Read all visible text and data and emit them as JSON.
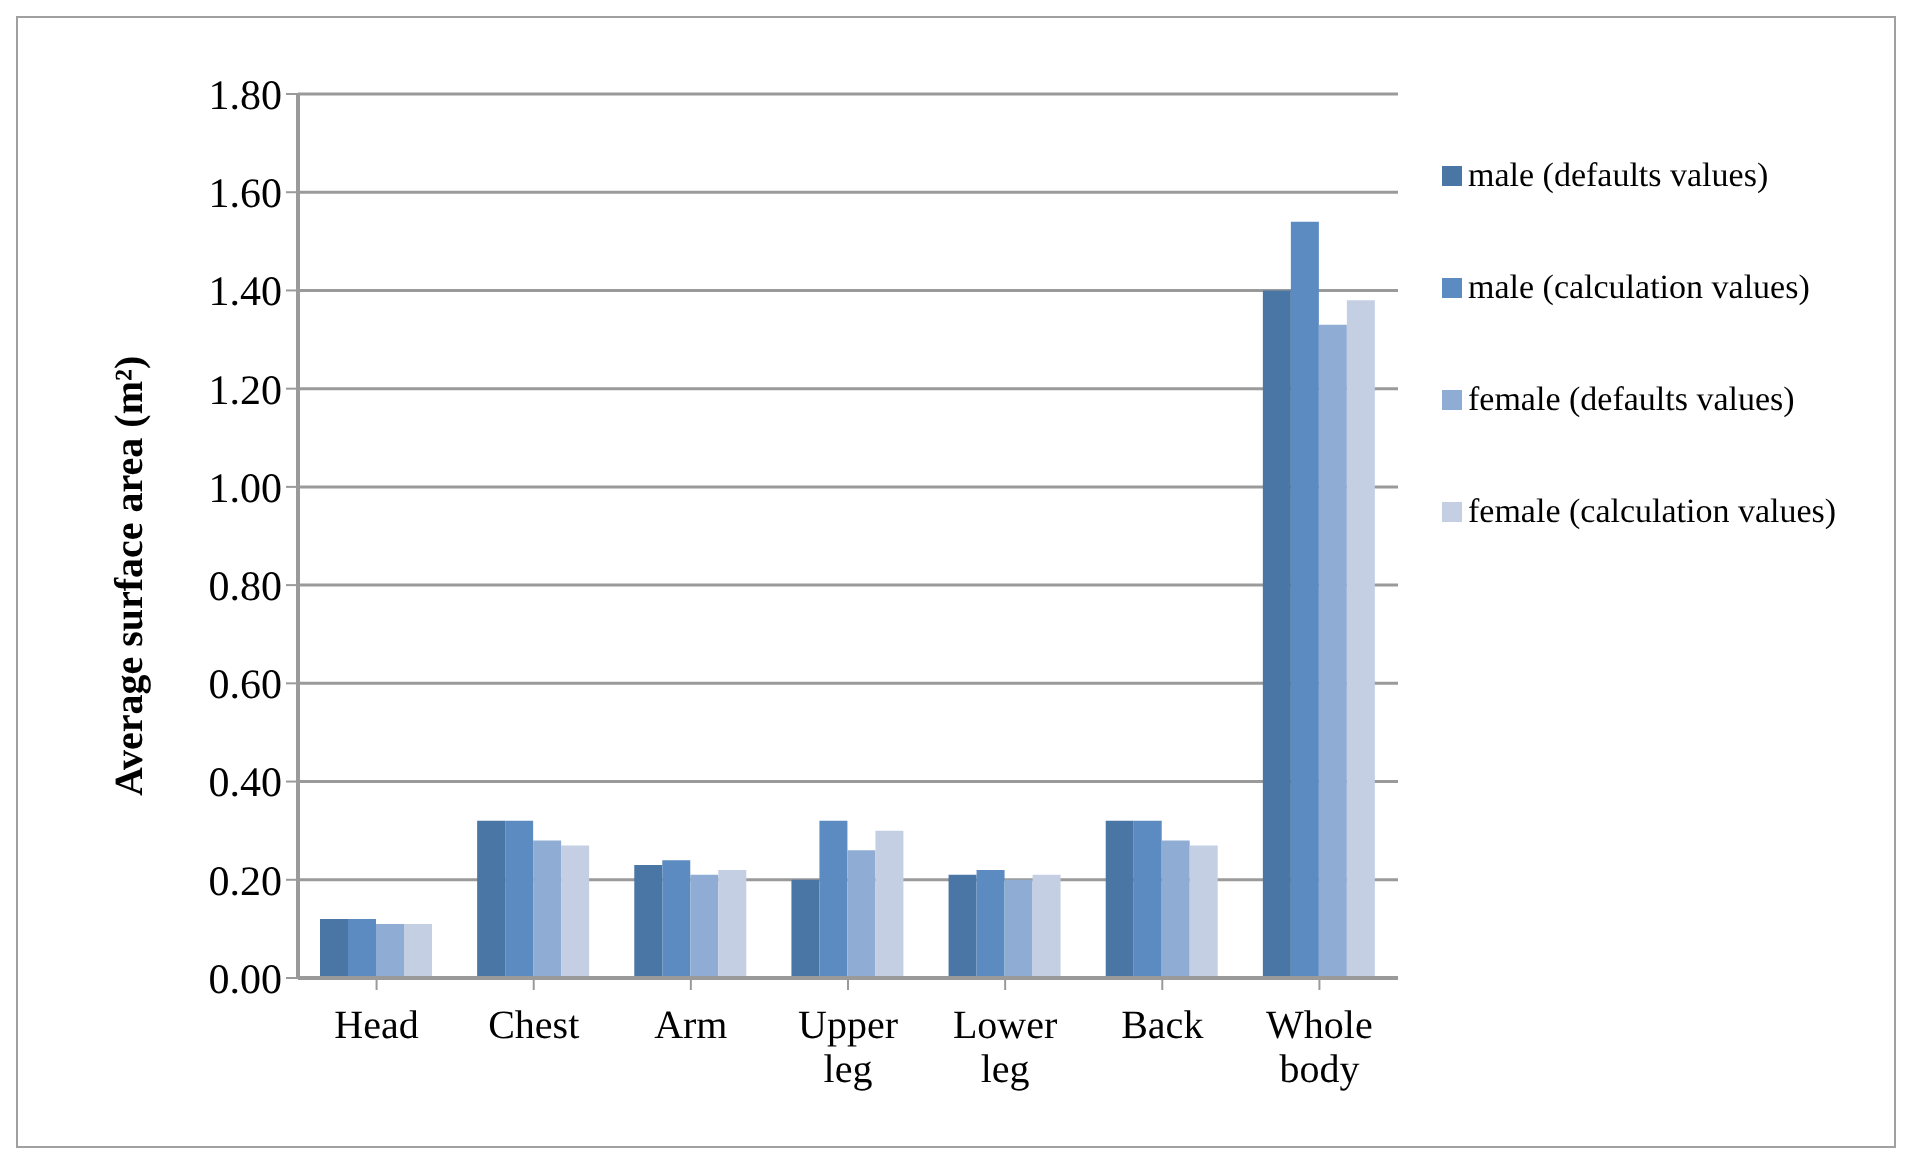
{
  "chart_data": {
    "type": "bar",
    "ylabel": "Average surface area (m²)",
    "categories": [
      "Head",
      "Chest",
      "Arm",
      "Upper leg",
      "Lower leg",
      "Back",
      "Whole body"
    ],
    "series": [
      {
        "name": "male (defaults values)",
        "color": "#4a76a5",
        "values": [
          0.12,
          0.32,
          0.23,
          0.2,
          0.21,
          0.32,
          1.4
        ]
      },
      {
        "name": "male (calculation values)",
        "color": "#5b8bc0",
        "values": [
          0.12,
          0.32,
          0.24,
          0.32,
          0.22,
          0.32,
          1.54
        ]
      },
      {
        "name": "female (defaults values)",
        "color": "#8fadd4",
        "values": [
          0.11,
          0.28,
          0.21,
          0.26,
          0.2,
          0.28,
          1.33
        ]
      },
      {
        "name": "female (calculation values)",
        "color": "#c4cfe3",
        "values": [
          0.11,
          0.27,
          0.22,
          0.3,
          0.21,
          0.27,
          1.38
        ]
      }
    ],
    "ylim": [
      0,
      1.8
    ],
    "yticks": [
      {
        "value": 0,
        "label": "0.00"
      },
      {
        "value": 0.2,
        "label": "0.20"
      },
      {
        "value": 0.4,
        "label": "0.40"
      },
      {
        "value": 0.6,
        "label": "0.60"
      },
      {
        "value": 0.8,
        "label": "0.80"
      },
      {
        "value": 1,
        "label": "1.00"
      },
      {
        "value": 1.2,
        "label": "1.20"
      },
      {
        "value": 1.4,
        "label": "1.40"
      },
      {
        "value": 1.6,
        "label": "1.60"
      },
      {
        "value": 1.8,
        "label": "1.80"
      }
    ],
    "grid": "y",
    "legend": "right"
  }
}
